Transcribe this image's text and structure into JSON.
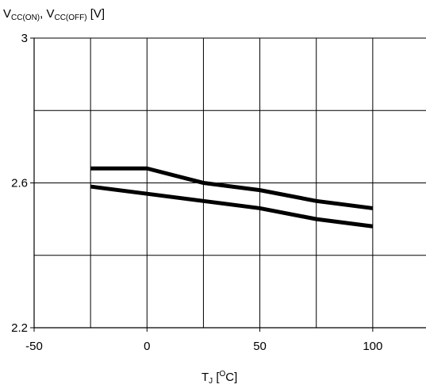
{
  "chart_data": {
    "type": "line",
    "ylabel": {
      "v1": "V",
      "v1_sub": "CC(ON)",
      "sep": ", ",
      "v2": "V",
      "v2_sub": "CC(OFF)",
      "unit": " [V]"
    },
    "xlabel": {
      "t": "T",
      "t_sub": "J",
      "open": " [",
      "deg": "O",
      "close": "C]"
    },
    "xlim": [
      -50,
      125
    ],
    "ylim": [
      2.2,
      3.0
    ],
    "x_ticks": [
      -50,
      0,
      50,
      100
    ],
    "x_tick_labels": [
      "-50",
      "0",
      "50",
      "100"
    ],
    "y_ticks": [
      2.2,
      2.6,
      3.0
    ],
    "y_tick_labels": [
      "2.2",
      "2.6",
      "3"
    ],
    "x_gridlines": [
      -25,
      0,
      25,
      50,
      75,
      100,
      125
    ],
    "y_gridlines": [
      2.4,
      2.6,
      2.8,
      3.0
    ],
    "grid": true,
    "series": [
      {
        "x": [
          -25,
          0,
          25,
          50,
          75,
          100
        ],
        "y": [
          2.64,
          2.64,
          2.6,
          2.58,
          2.55,
          2.53
        ]
      },
      {
        "x": [
          -25,
          0,
          25,
          50,
          75,
          100
        ],
        "y": [
          2.59,
          2.57,
          2.55,
          2.53,
          2.5,
          2.48
        ]
      }
    ],
    "line_color": "#000000",
    "grid_color": "#000000"
  }
}
